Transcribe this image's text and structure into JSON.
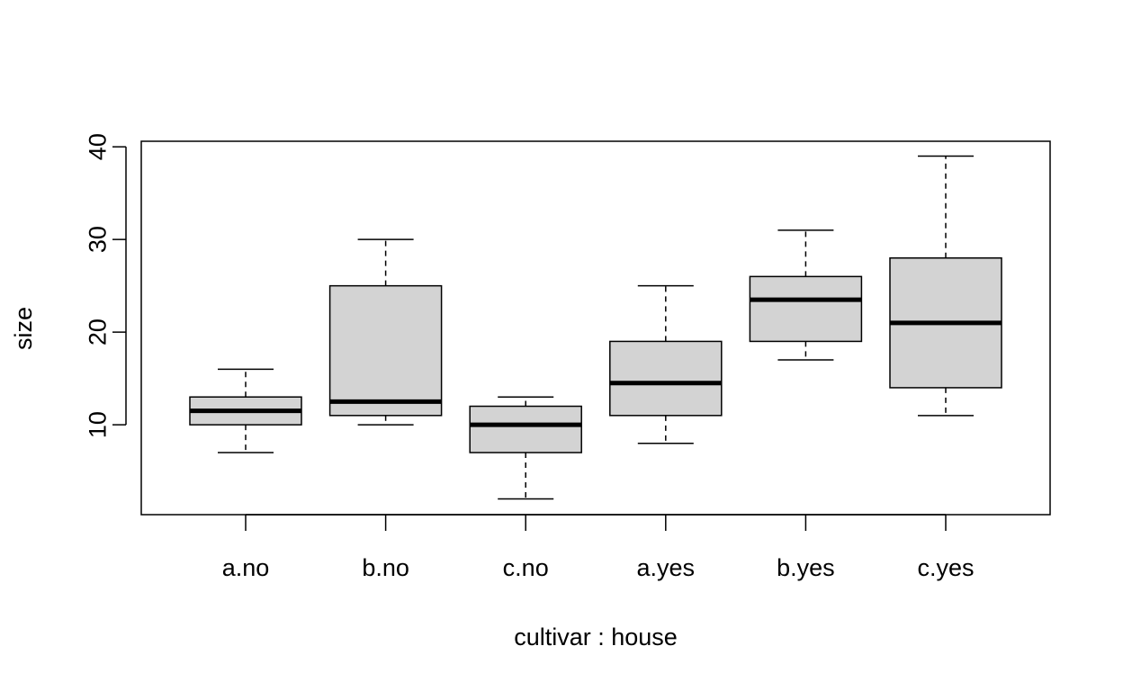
{
  "chart_data": {
    "type": "boxplot",
    "title": "",
    "xlabel": "cultivar : house",
    "ylabel": "size",
    "ylim": [
      0.3,
      40.6
    ],
    "yticks": [
      10,
      20,
      30,
      40
    ],
    "grid": false,
    "box_fill": "#d3d3d3",
    "line_color": "#000000",
    "categories": [
      "a.no",
      "b.no",
      "c.no",
      "a.yes",
      "b.yes",
      "c.yes"
    ],
    "boxes": [
      {
        "min": 7,
        "q1": 10,
        "median": 11.5,
        "q3": 13,
        "max": 16
      },
      {
        "min": 10,
        "q1": 11,
        "median": 12.5,
        "q3": 25,
        "max": 30
      },
      {
        "min": 2,
        "q1": 7,
        "median": 10,
        "q3": 12,
        "max": 13
      },
      {
        "min": 8,
        "q1": 11,
        "median": 14.5,
        "q3": 19,
        "max": 25
      },
      {
        "min": 17,
        "q1": 19,
        "median": 23.5,
        "q3": 26,
        "max": 31
      },
      {
        "min": 11,
        "q1": 14,
        "median": 21,
        "q3": 28,
        "max": 39
      }
    ]
  }
}
